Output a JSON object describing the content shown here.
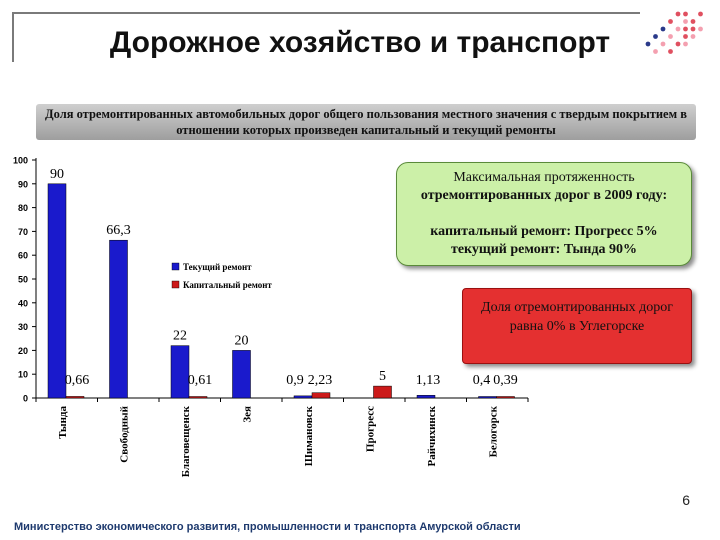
{
  "title": "Дорожное хозяйство и транспорт",
  "subtitle": "Доля отремонтированных автомобильных дорог общего пользования местного значения с твердым покрытием в отношении которых произведен капитальный и текущий ремонты",
  "info_box": {
    "line1": "Максимальная протяженность",
    "line2": "отремонтированных дорог в 2009 году:",
    "line3": "капитальный ремонт: Прогресс 5%",
    "line4": "текущий ремонт: Тында 90%"
  },
  "alert_box": {
    "text": "Доля отремонтированных дорог равна 0% в Углегорске"
  },
  "page_number": "6",
  "footer": "Министерство экономического развития, промышленности и транспорта Амурской области",
  "colors": {
    "current_repair": "#1a1acc",
    "capital_repair": "#cc1a1a",
    "info_box": "#ccf0a8",
    "alert_box": "#e43030"
  },
  "chart_data": {
    "type": "bar",
    "categories": [
      "Тында",
      "Свободный",
      "Благовещенск",
      "Зея",
      "Шимановск",
      "Прогресс",
      "Райчихинск",
      "Белогорск"
    ],
    "series": [
      {
        "name": "Текущий ремонт",
        "values": [
          90,
          66.3,
          22,
          20,
          0.9,
          null,
          1.13,
          0.4
        ]
      },
      {
        "name": "Капитальный ремонт",
        "values": [
          0.66,
          null,
          0.61,
          null,
          2.23,
          5,
          null,
          0.39
        ]
      }
    ],
    "data_labels": [
      [
        "90",
        "66,3",
        "22",
        "20",
        "0,9",
        "",
        "1,13",
        "0,4"
      ],
      [
        "0,66",
        "",
        "0,61",
        "",
        "2,23",
        "5",
        "",
        "0,39"
      ]
    ],
    "yticks": [
      "0",
      "10",
      "20",
      "30",
      "40",
      "50",
      "60",
      "70",
      "80",
      "90",
      "100"
    ],
    "ylim": [
      0,
      100
    ],
    "legend_position": "center",
    "grid": false
  }
}
